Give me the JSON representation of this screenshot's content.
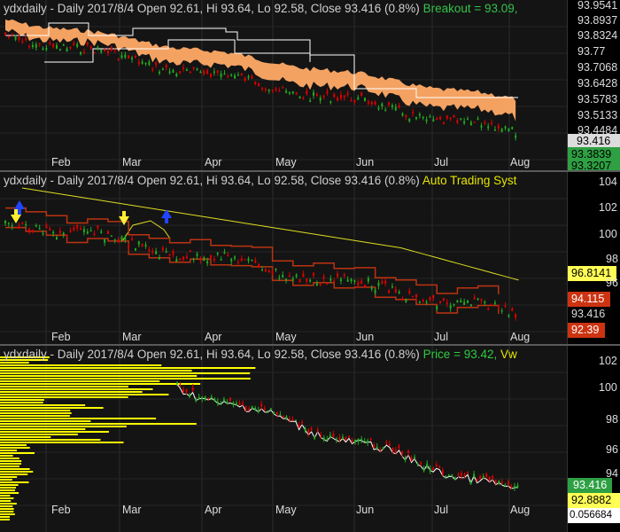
{
  "window": {
    "symbol": "ydxdaily"
  },
  "months": [
    "Feb",
    "Mar",
    "Apr",
    "May",
    "Jun",
    "Jul",
    "Aug"
  ],
  "pane1": {
    "title_prefix": "ydxdaily - Daily 2017/8/4 Open 92.61, Hi 93.64, Lo 92.58, Close 93.416 (0.8%)",
    "indicator": "Breakout = 93.09,",
    "y_labels": [
      "93.9541",
      "93.8937",
      "93.8324",
      "93.77",
      "93.7068",
      "93.6428",
      "93.5783",
      "93.5133",
      "93.4484"
    ],
    "badges": {
      "close": "93.416",
      "b1": "93.3839",
      "b2": "93.3207"
    },
    "colors": {
      "band": "#ffaa66",
      "up": "#22aa22",
      "down": "#dd0000",
      "breakout": "#ffffff",
      "badge_close": "#dcdcdc",
      "badge_green": "#2ea043"
    }
  },
  "pane2": {
    "title_prefix": "ydxdaily - Daily 2017/8/4 Open 92.61, Hi 93.64, Lo 92.58, Close 93.416 (0.8%)",
    "indicator": "Auto Trading Syst",
    "y_labels": [
      "104",
      "102",
      "100",
      "98",
      "96"
    ],
    "badges": {
      "ma": "96.8141",
      "upper": "94.115",
      "close": "93.416",
      "lower": "92.39"
    },
    "colors": {
      "channel": "#bb3311",
      "ma": "#dddd22",
      "arrow_up": "#ffee33",
      "arrow_down": "#2244ff",
      "badge_yellow": "#ffff55",
      "badge_red": "#cc3311"
    }
  },
  "pane3": {
    "title_prefix": "ydxdaily - Daily 2017/8/4 Open 92.61, Hi 93.64, Lo 92.58, Close 93.416 (0.8%)",
    "indicator_price": "Price = 93.42,",
    "indicator_vw": "Vw",
    "y_labels": [
      "102",
      "100",
      "98",
      "96",
      "94"
    ],
    "badges": {
      "close": "93.416",
      "vwap": "92.8882",
      "vol": "0.056684"
    },
    "colors": {
      "profile": "#ffff00",
      "vwap_line": "#ffffff",
      "badge_green": "#2ea043",
      "badge_yellow": "#ffff55",
      "badge_white": "#ffffff"
    }
  }
}
